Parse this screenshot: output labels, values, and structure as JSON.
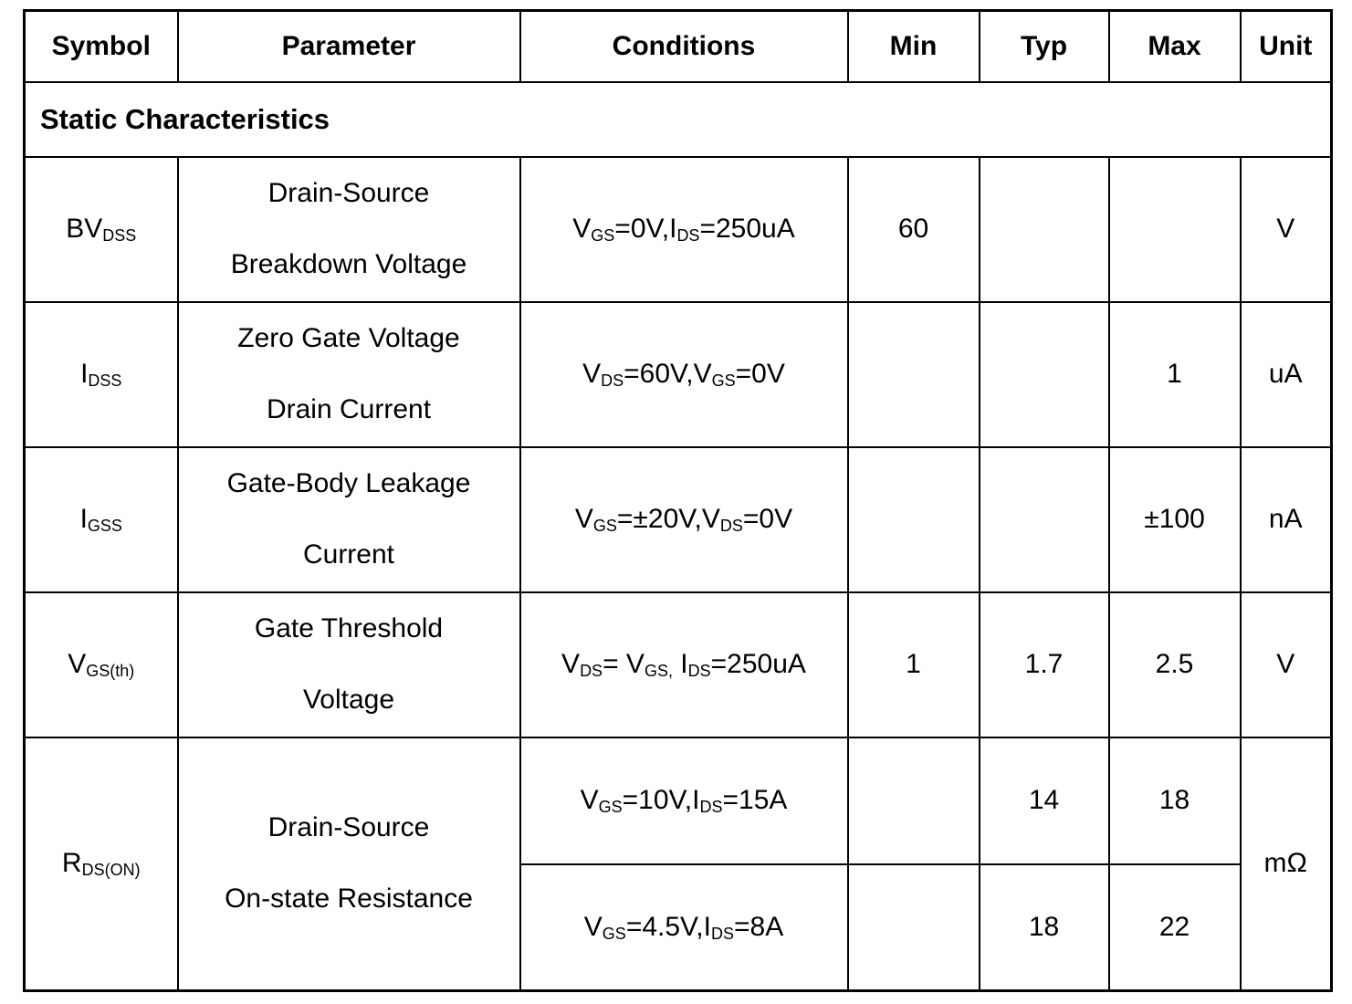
{
  "table": {
    "headers": {
      "symbol": "Symbol",
      "parameter": "Parameter",
      "conditions": "Conditions",
      "min": "Min",
      "typ": "Typ",
      "max": "Max",
      "unit": "Unit"
    },
    "section_title": "Static Characteristics",
    "rows": [
      {
        "symbol": [
          [
            "BV",
            "DSS"
          ]
        ],
        "parameter_lines": [
          "Drain-Source",
          "Breakdown Voltage"
        ],
        "conditions": [
          [
            "V",
            "GS"
          ],
          [
            "=0V,I",
            "DS"
          ],
          [
            "=250uA",
            ""
          ]
        ],
        "min": "60",
        "typ": "",
        "max": "",
        "unit": "V"
      },
      {
        "symbol": [
          [
            "I",
            "DSS"
          ]
        ],
        "parameter_lines": [
          "Zero Gate Voltage",
          "Drain Current"
        ],
        "conditions": [
          [
            "V",
            "DS"
          ],
          [
            "=60V,V",
            "GS"
          ],
          [
            "=0V",
            ""
          ]
        ],
        "min": "",
        "typ": "",
        "max": "1",
        "unit": "uA"
      },
      {
        "symbol": [
          [
            "I",
            "GSS"
          ]
        ],
        "parameter_lines": [
          "Gate-Body Leakage",
          "Current"
        ],
        "conditions": [
          [
            "V",
            "GS"
          ],
          [
            "=±20V,V",
            "DS"
          ],
          [
            "=0V",
            ""
          ]
        ],
        "min": "",
        "typ": "",
        "max": "±100",
        "unit": "nA"
      },
      {
        "symbol": [
          [
            "V",
            "GS(th)"
          ]
        ],
        "parameter_lines": [
          "Gate Threshold",
          "Voltage"
        ],
        "conditions": [
          [
            "V",
            "DS"
          ],
          [
            "= V",
            "GS,"
          ],
          [
            " I",
            "DS"
          ],
          [
            "=250uA",
            ""
          ]
        ],
        "min": "1",
        "typ": "1.7",
        "max": "2.5",
        "unit": "V"
      },
      {
        "symbol": [
          [
            "R",
            "DS(ON)"
          ]
        ],
        "parameter_lines": [
          "Drain-Source",
          "On-state Resistance"
        ],
        "unit": "mΩ",
        "subrows": [
          {
            "conditions": [
              [
                "V",
                "GS"
              ],
              [
                "=10V,I",
                "DS"
              ],
              [
                "=15A",
                ""
              ]
            ],
            "min": "",
            "typ": "14",
            "max": "18"
          },
          {
            "conditions": [
              [
                "V",
                "GS"
              ],
              [
                "=4.5V,I",
                "DS"
              ],
              [
                "=8A",
                ""
              ]
            ],
            "min": "",
            "typ": "18",
            "max": "22"
          }
        ]
      }
    ]
  }
}
